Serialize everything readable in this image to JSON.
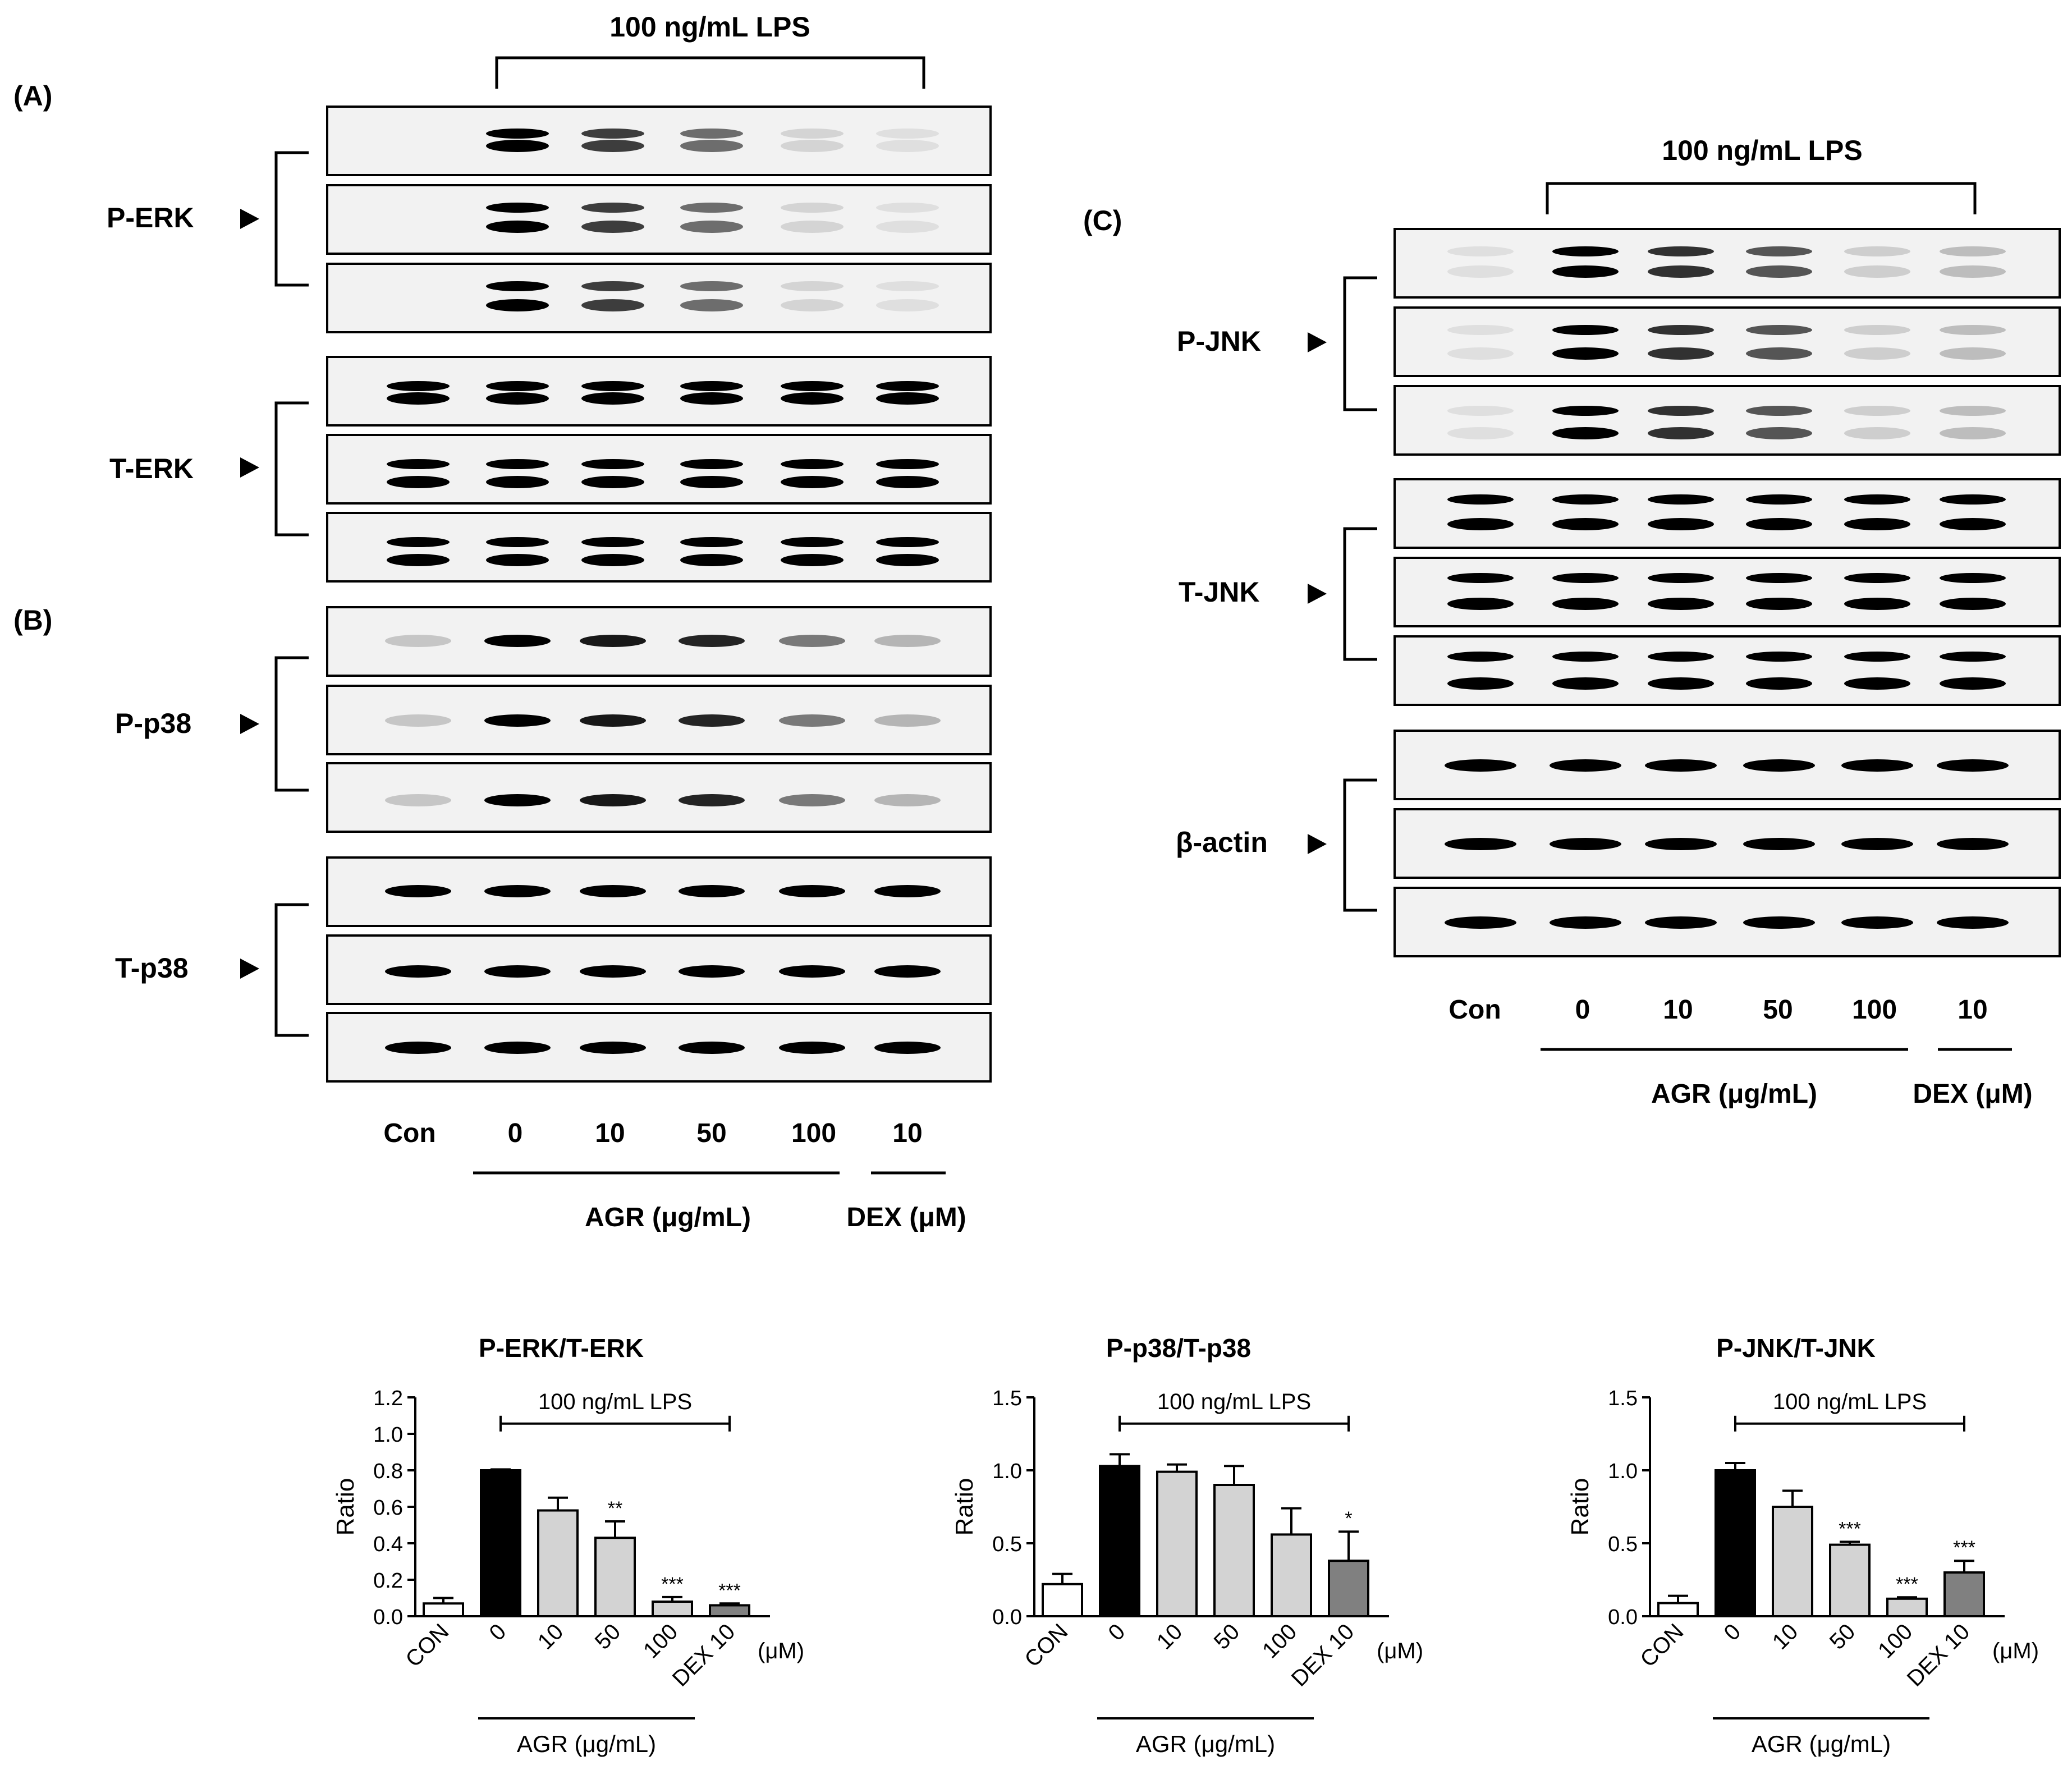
{
  "panel_letters": {
    "a": "(A)",
    "b": "(B)",
    "c": "(C)"
  },
  "lps_label": "100 ng/mL LPS",
  "blot_rows": {
    "p_erk": "P-ERK",
    "t_erk": "T-ERK",
    "p_p38": "P-p38",
    "t_p38": "T-p38",
    "p_jnk": "P-JNK",
    "t_jnk": "T-JNK",
    "b_actin": "β-actin"
  },
  "lanes": [
    "Con",
    "0",
    "10",
    "50",
    "100",
    "10"
  ],
  "agr_label": "AGR (μg/mL)",
  "dex_label": "DEX (μM)",
  "band_intensity": {
    "p_erk": [
      0.0,
      1.0,
      0.75,
      0.55,
      0.12,
      0.08
    ],
    "t_erk": [
      1,
      1,
      1,
      1,
      1,
      1
    ],
    "p_p38": [
      0.18,
      1.0,
      0.9,
      0.85,
      0.5,
      0.25
    ],
    "t_p38": [
      1,
      1,
      1,
      1,
      1,
      1
    ],
    "p_jnk": [
      0.05,
      1.0,
      0.8,
      0.65,
      0.15,
      0.22
    ],
    "t_jnk": [
      1,
      1,
      1,
      1,
      1,
      1
    ],
    "b_actin": [
      1,
      1,
      1,
      1,
      1,
      1
    ]
  },
  "bar_fill_colors": [
    "#ffffff",
    "#000000",
    "#d3d3d3",
    "#d3d3d3",
    "#d3d3d3",
    "#808080"
  ],
  "chart_data": [
    {
      "type": "bar",
      "title": "P-ERK/T-ERK",
      "ylabel": "Ratio",
      "xlabel": "AGR (μg/mL)",
      "annotation": "100 ng/mL LPS",
      "unit_label": "(μM)",
      "categories": [
        "CON",
        "0",
        "10",
        "50",
        "100",
        "DEX 10"
      ],
      "values": [
        0.07,
        0.8,
        0.58,
        0.43,
        0.08,
        0.06
      ],
      "errors": [
        0.03,
        0.005,
        0.07,
        0.09,
        0.025,
        0.01
      ],
      "significance": [
        "",
        "",
        "",
        "**",
        "***",
        "***"
      ],
      "yticks": [
        "0.0",
        "0.2",
        "0.4",
        "0.6",
        "0.8",
        "1.0",
        "1.2"
      ],
      "ylim": [
        0,
        1.2
      ]
    },
    {
      "type": "bar",
      "title": "P-p38/T-p38",
      "ylabel": "Ratio",
      "xlabel": "AGR (μg/mL)",
      "annotation": "100 ng/mL LPS",
      "unit_label": "(μM)",
      "categories": [
        "CON",
        "0",
        "10",
        "50",
        "100",
        "DEX 10"
      ],
      "values": [
        0.22,
        1.03,
        0.99,
        0.9,
        0.56,
        0.38
      ],
      "errors": [
        0.07,
        0.08,
        0.05,
        0.13,
        0.18,
        0.2
      ],
      "significance": [
        "",
        "",
        "",
        "",
        "",
        "*"
      ],
      "yticks": [
        "0.0",
        "0.5",
        "1.0",
        "1.5"
      ],
      "ylim": [
        0,
        1.5
      ]
    },
    {
      "type": "bar",
      "title": "P-JNK/T-JNK",
      "ylabel": "Ratio",
      "xlabel": "AGR (μg/mL)",
      "annotation": "100 ng/mL LPS",
      "unit_label": "(μM)",
      "categories": [
        "CON",
        "0",
        "10",
        "50",
        "100",
        "DEX 10"
      ],
      "values": [
        0.09,
        1.0,
        0.75,
        0.49,
        0.12,
        0.3
      ],
      "errors": [
        0.05,
        0.05,
        0.11,
        0.02,
        0.01,
        0.08
      ],
      "significance": [
        "",
        "",
        "",
        "***",
        "***",
        "***"
      ],
      "yticks": [
        "0.0",
        "0.5",
        "1.0",
        "1.5"
      ],
      "ylim": [
        0,
        1.5
      ]
    }
  ]
}
